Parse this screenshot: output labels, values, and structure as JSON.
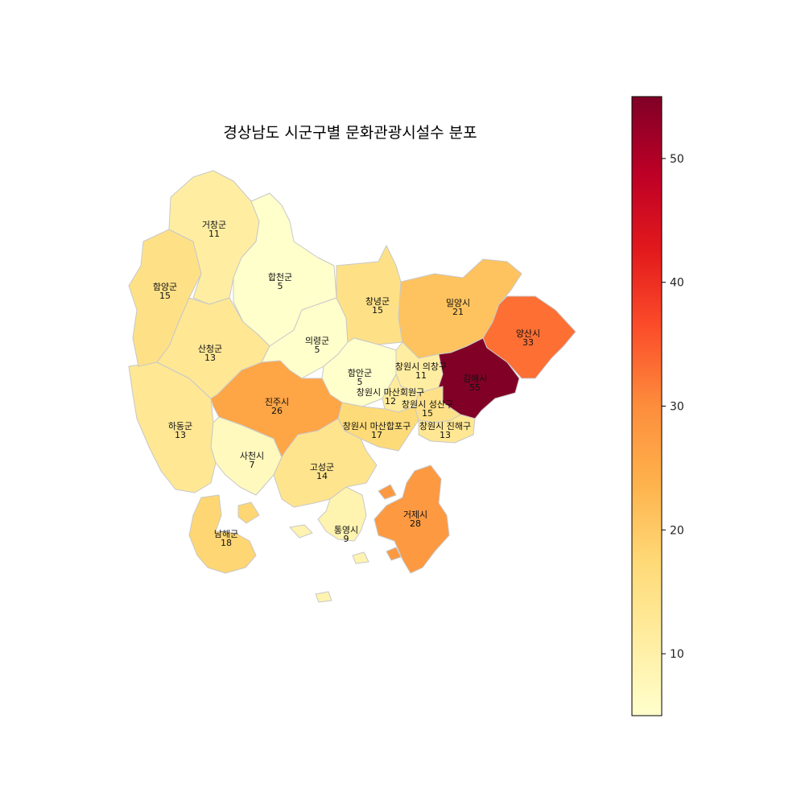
{
  "title": "경상남도 시군구별 문화관광시설수 분포",
  "regions": [
    {
      "id": "geochang",
      "name": "거창군",
      "value": 11
    },
    {
      "id": "hamyang",
      "name": "함양군",
      "value": 15
    },
    {
      "id": "hapcheon",
      "name": "합천군",
      "value": 5
    },
    {
      "id": "changnyeong",
      "name": "창녕군",
      "value": 15
    },
    {
      "id": "miryang",
      "name": "밀양시",
      "value": 21
    },
    {
      "id": "yangsan",
      "name": "양산시",
      "value": 33
    },
    {
      "id": "sancheong",
      "name": "산청군",
      "value": 13
    },
    {
      "id": "uiryeong",
      "name": "의령군",
      "value": 5
    },
    {
      "id": "haman",
      "name": "함안군",
      "value": 5
    },
    {
      "id": "uichang",
      "name": "창원시 의창구",
      "value": 11
    },
    {
      "id": "gimhae",
      "name": "김해시",
      "value": 55
    },
    {
      "id": "hoewon",
      "name": "창원시 마산회원구",
      "value": 12
    },
    {
      "id": "seongsan",
      "name": "창원시 성산구",
      "value": 15
    },
    {
      "id": "jinju",
      "name": "진주시",
      "value": 26
    },
    {
      "id": "hapo",
      "name": "창원시 마산합포구",
      "value": 17
    },
    {
      "id": "jinhae",
      "name": "창원시 진해구",
      "value": 13
    },
    {
      "id": "hadong",
      "name": "하동군",
      "value": 13
    },
    {
      "id": "sacheon",
      "name": "사천시",
      "value": 7
    },
    {
      "id": "goseong",
      "name": "고성군",
      "value": 14
    },
    {
      "id": "geoje",
      "name": "거제시",
      "value": 28
    },
    {
      "id": "namhae",
      "name": "남해군",
      "value": 18
    },
    {
      "id": "tongyeong",
      "name": "통영시",
      "value": 9
    }
  ],
  "colorbar": {
    "min": 5,
    "max": 55,
    "ticks": [
      10,
      20,
      30,
      40,
      50
    ],
    "colormap": "YlOrRd",
    "stops": [
      "#ffffcc",
      "#ffeda0",
      "#fed976",
      "#feb24c",
      "#fd8d3c",
      "#fc4e2a",
      "#e31a1c",
      "#bd0026",
      "#800026"
    ]
  }
}
